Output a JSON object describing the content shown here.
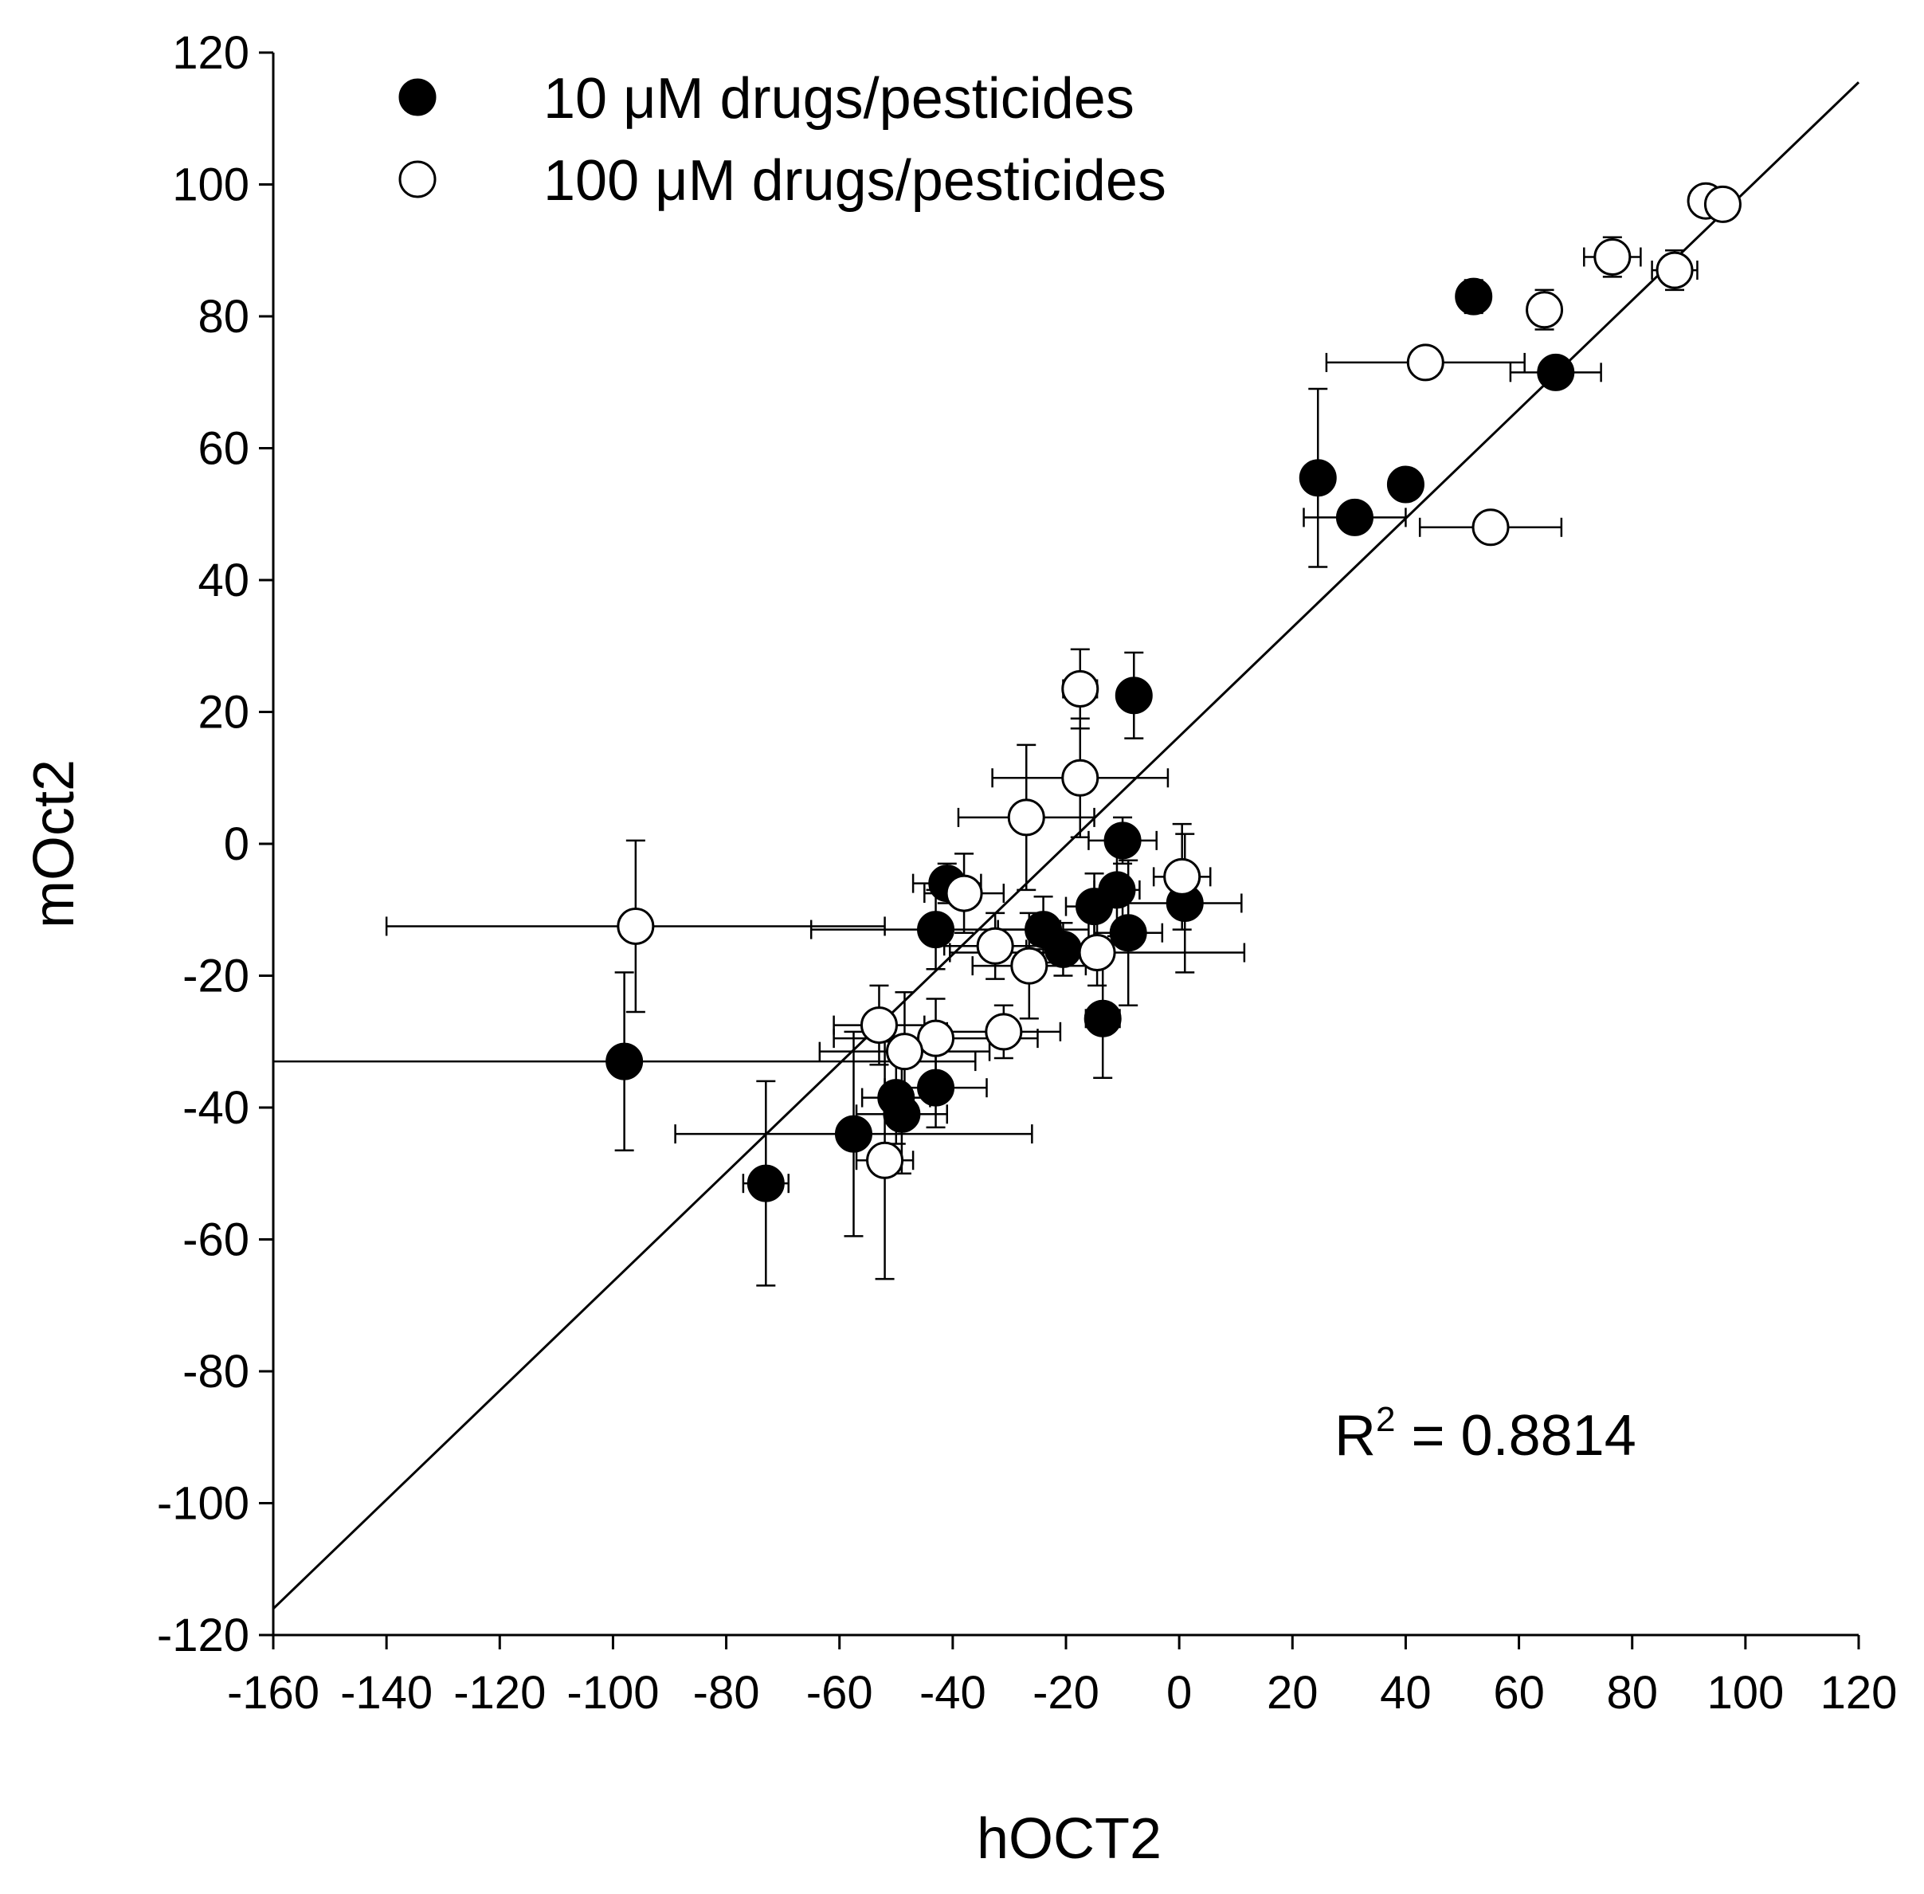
{
  "chart_data": {
    "type": "scatter",
    "title": "",
    "xlabel": "hOCT2",
    "ylabel": "mOct2",
    "xlim": [
      -160,
      120
    ],
    "ylim": [
      -120,
      120
    ],
    "x_ticks": [
      -160,
      -140,
      -120,
      -100,
      -80,
      -60,
      -40,
      -20,
      0,
      20,
      40,
      60,
      80,
      100,
      120
    ],
    "y_ticks": [
      -120,
      -100,
      -80,
      -60,
      -40,
      -20,
      0,
      20,
      40,
      60,
      80,
      100,
      120
    ],
    "x_tick_labels": [
      "-160",
      "-140",
      "-120",
      "-100",
      "-80",
      "-60",
      "-40",
      "-20",
      "0",
      "20",
      "40",
      "60",
      "80",
      "100",
      "120"
    ],
    "y_tick_labels": [
      "-120",
      "-100",
      "-80",
      "-60",
      "-40",
      "-20",
      "0",
      "20",
      "40",
      "60",
      "80",
      "100",
      "120"
    ],
    "grid": false,
    "legend_position": "top-left",
    "series": [
      {
        "name": "10 μM drugs/pesticides",
        "marker": "filled-circle",
        "color": "#000000",
        "points": [
          {
            "x": 52,
            "y": 83,
            "xerr": 1.5,
            "yerr": 2.5
          },
          {
            "x": 66.5,
            "y": 71.5,
            "xerr": 8,
            "yerr": 1
          },
          {
            "x": 24.5,
            "y": 55.5,
            "xerr": 2,
            "yerr": 13.5
          },
          {
            "x": 31,
            "y": 49.5,
            "xerr": 9,
            "yerr": 1
          },
          {
            "x": 40,
            "y": 54.5,
            "xerr": 2,
            "yerr": 1
          },
          {
            "x": -8,
            "y": 22.5,
            "xerr": 2,
            "yerr": 6.5
          },
          {
            "x": -10,
            "y": 0.5,
            "xerr": 6,
            "yerr": 3.5
          },
          {
            "x": 1,
            "y": -9,
            "xerr": 10,
            "yerr": 10.5
          },
          {
            "x": -11,
            "y": -7,
            "xerr": 4,
            "yerr": 7
          },
          {
            "x": -15,
            "y": -9.5,
            "xerr": 5,
            "yerr": 5
          },
          {
            "x": -9,
            "y": -13.5,
            "xerr": 6,
            "yerr": 11
          },
          {
            "x": -24,
            "y": -13,
            "xerr": 8,
            "yerr": 5
          },
          {
            "x": -20.5,
            "y": -16,
            "xerr": 6.5,
            "yerr": 4
          },
          {
            "x": -41,
            "y": -6,
            "xerr": 6,
            "yerr": 3
          },
          {
            "x": -43,
            "y": -13,
            "xerr": 22,
            "yerr": 6
          },
          {
            "x": -13.5,
            "y": -26.5,
            "xerr": 3,
            "yerr": 9
          },
          {
            "x": -98,
            "y": -33,
            "xerr": 62,
            "yerr": 13.5
          },
          {
            "x": -43,
            "y": -37,
            "xerr": 9,
            "yerr": 6
          },
          {
            "x": -49,
            "y": -41,
            "xerr": 8,
            "yerr": 9
          },
          {
            "x": -50,
            "y": -38.5,
            "xerr": 6,
            "yerr": 7
          },
          {
            "x": -57.5,
            "y": -44,
            "xerr": 31.5,
            "yerr": 15.5
          },
          {
            "x": -73,
            "y": -51.5,
            "xerr": 4,
            "yerr": 15.5
          }
        ]
      },
      {
        "name": "100 μM drugs/pesticides",
        "marker": "open-circle",
        "color": "#000000",
        "points": [
          {
            "x": 93,
            "y": 97.5,
            "xerr": 1.5,
            "yerr": 2
          },
          {
            "x": 96,
            "y": 97,
            "xerr": 1,
            "yerr": 1
          },
          {
            "x": 76.5,
            "y": 89,
            "xerr": 5,
            "yerr": 3
          },
          {
            "x": 87.5,
            "y": 87,
            "xerr": 4,
            "yerr": 3
          },
          {
            "x": 64.5,
            "y": 81,
            "xerr": 2,
            "yerr": 3
          },
          {
            "x": 43.5,
            "y": 73,
            "xerr": 17.5,
            "yerr": 1
          },
          {
            "x": 55,
            "y": 48,
            "xerr": 12.5,
            "yerr": 2
          },
          {
            "x": -17.5,
            "y": 23.5,
            "xerr": 3,
            "yerr": 6
          },
          {
            "x": -17.5,
            "y": 10,
            "xerr": 15.5,
            "yerr": 9
          },
          {
            "x": -27,
            "y": 4,
            "xerr": 12,
            "yerr": 11
          },
          {
            "x": 0.5,
            "y": -5,
            "xerr": 5,
            "yerr": 8
          },
          {
            "x": -38,
            "y": -7.5,
            "xerr": 7,
            "yerr": 6
          },
          {
            "x": -32.5,
            "y": -15.5,
            "xerr": 9,
            "yerr": 5
          },
          {
            "x": -26.5,
            "y": -18.5,
            "xerr": 10,
            "yerr": 8
          },
          {
            "x": -14.5,
            "y": -16.5,
            "xerr": 26,
            "yerr": 5
          },
          {
            "x": -96,
            "y": -12.5,
            "xerr": 44,
            "yerr": 13
          },
          {
            "x": -53,
            "y": -27.5,
            "xerr": 8,
            "yerr": 6
          },
          {
            "x": -31,
            "y": -28.5,
            "xerr": 10,
            "yerr": 4
          },
          {
            "x": -43,
            "y": -29.5,
            "xerr": 18,
            "yerr": 6
          },
          {
            "x": -48.5,
            "y": -31.5,
            "xerr": 15,
            "yerr": 9
          },
          {
            "x": -52,
            "y": -48,
            "xerr": 5,
            "yerr": 18
          }
        ]
      }
    ],
    "trend_line": {
      "x": [
        -160,
        120
      ],
      "y": [
        -116,
        115.5
      ]
    },
    "annotations": [
      {
        "text_base": "R",
        "superscript": "2",
        "text_rest": " = 0.8814"
      }
    ]
  }
}
